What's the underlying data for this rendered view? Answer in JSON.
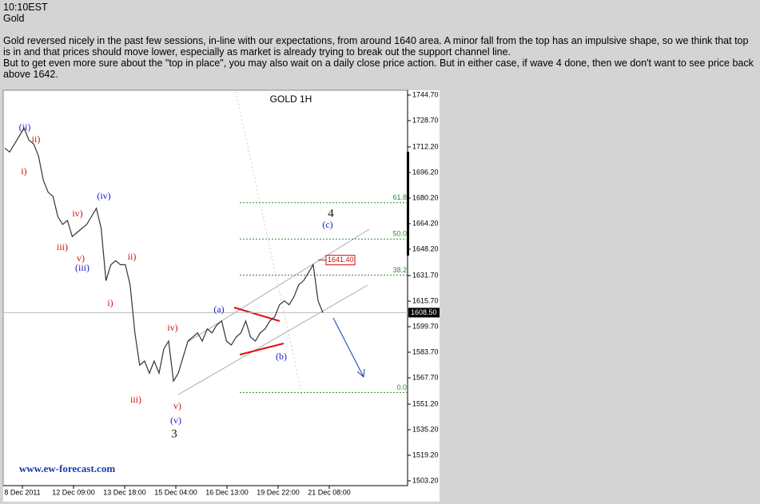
{
  "header": {
    "time": "10:10EST",
    "subject": "Gold",
    "paragraphs": [
      "Gold reversed nicely in the past few sessions, in-line with our expectations, from around 1640 area. A minor fall from the top has an impulsive shape, so we think that top is in and that prices should move lower, especially as market is already trying to break out the support channel line.",
      "But to get even more sure about the \"top in place\", you may also wait on a daily close price action. But in either case, if wave 4 done, then we don't want to see price back above 1642."
    ]
  },
  "chart_data": {
    "type": "line",
    "title": "GOLD 1H",
    "color": "#333333",
    "values": [
      1711.5,
      1709,
      1714,
      1719,
      1724,
      1716.5,
      1714,
      1706.5,
      1691.4,
      1683.8,
      1681.3,
      1668.7,
      1663.7,
      1666.2,
      1656.1,
      1658.7,
      1661.2,
      1663.7,
      1668.7,
      1673.8,
      1661.2,
      1628.5,
      1638.5,
      1641,
      1638.5,
      1638.5,
      1625.9,
      1595.8,
      1575.6,
      1578.2,
      1570.6,
      1578.2,
      1570.6,
      1585.7,
      1590.7,
      1565.6,
      1570.6,
      1580.7,
      1590.7,
      1593.2,
      1595.8,
      1590.7,
      1598.3,
      1595.8,
      1600.8,
      1603.3,
      1590.7,
      1588.2,
      1593.2,
      1595.8,
      1603.3,
      1593.2,
      1590.7,
      1595.8,
      1598.3,
      1603.3,
      1605.8,
      1613.4,
      1615.9,
      1613.4,
      1618.4,
      1625.9,
      1628.5,
      1633.5,
      1638.5,
      1615.9,
      1608.5
    ],
    "x_labels": [
      "8 Dec 2011",
      "12 Dec 09:00",
      "13 Dec 18:00",
      "15 Dec 04:00",
      "16 Dec 13:00",
      "19 Dec 22:00",
      "21 Dec 08:00"
    ],
    "ylim": [
      1500.2,
      1747.7
    ],
    "yticks": [
      {
        "value": 1744.7,
        "label": "1744.70"
      },
      {
        "value": 1728.7,
        "label": "1728.70"
      },
      {
        "value": 1712.2,
        "label": "1712.20"
      },
      {
        "value": 1696.2,
        "label": "1696.20"
      },
      {
        "value": 1680.2,
        "label": "1680.20"
      },
      {
        "value": 1664.2,
        "label": "1664.20"
      },
      {
        "value": 1648.2,
        "label": "1648.20"
      },
      {
        "value": 1631.7,
        "label": "1631.70"
      },
      {
        "value": 1615.7,
        "label": "1615.70"
      },
      {
        "value": 1599.7,
        "label": "1599.70"
      },
      {
        "value": 1583.7,
        "label": "1583.70"
      },
      {
        "value": 1567.7,
        "label": "1567.70"
      },
      {
        "value": 1551.2,
        "label": "1551.20"
      },
      {
        "value": 1535.2,
        "label": "1535.20"
      },
      {
        "value": 1519.2,
        "label": "1519.20"
      },
      {
        "value": 1503.2,
        "label": "1503.20"
      }
    ],
    "current_price": {
      "value": 1608.5,
      "label": "1608.50"
    },
    "peak_tag": {
      "value": 1641.4,
      "label": "1641.40"
    },
    "fib_levels": [
      {
        "ratio": "61.8",
        "price": 1677.3
      },
      {
        "ratio": "50.0",
        "price": 1654.6
      },
      {
        "ratio": "38.2",
        "price": 1632
      },
      {
        "ratio": "0.0",
        "price": 1558.5
      }
    ],
    "fib_color": "#2e8b2e",
    "annotations": [
      {
        "text": "(ii)",
        "color": "#1a1acc"
      },
      {
        "text": "ii)",
        "color": "#cc1111"
      },
      {
        "text": "i)",
        "color": "#cc1111"
      },
      {
        "text": "(iv)",
        "color": "#1a1acc"
      },
      {
        "text": "iv)",
        "color": "#cc1111"
      },
      {
        "text": "iii)",
        "color": "#cc1111"
      },
      {
        "text": "v)",
        "color": "#cc1111"
      },
      {
        "text": "(iii)",
        "color": "#1a1acc"
      },
      {
        "text": "ii)",
        "color": "#cc1111"
      },
      {
        "text": "i)",
        "color": "#cc1111"
      },
      {
        "text": "iv)",
        "color": "#cc1111"
      },
      {
        "text": "iii)",
        "color": "#cc1111"
      },
      {
        "text": "v)",
        "color": "#cc1111"
      },
      {
        "text": "(v)",
        "color": "#1a1acc"
      },
      {
        "text": "3",
        "color": "#111111"
      },
      {
        "text": "(a)",
        "color": "#1a1acc"
      },
      {
        "text": "(b)",
        "color": "#1a1acc"
      },
      {
        "text": "4",
        "color": "#111111"
      },
      {
        "text": "(c)",
        "color": "#1a1acc"
      }
    ],
    "watermark": "www.ew-forecast.com"
  }
}
